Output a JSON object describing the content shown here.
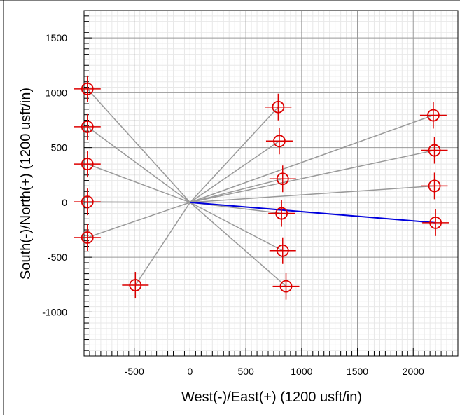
{
  "chart_data": {
    "type": "scatter",
    "title": "",
    "xlabel": "West(-)/East(+) (1200 usft/in)",
    "ylabel": "South(-)/North(+) (1200 usft/in)",
    "xlim": [
      -950,
      2400
    ],
    "ylim": [
      -1400,
      1750
    ],
    "xticks": [
      -500,
      0,
      500,
      1000,
      1500,
      2000
    ],
    "yticks": [
      -1000,
      -500,
      0,
      500,
      1000,
      1500
    ],
    "grid": true,
    "origin": [
      0,
      0
    ],
    "targets": [
      {
        "x": -920,
        "y": 1035
      },
      {
        "x": -920,
        "y": 690
      },
      {
        "x": -920,
        "y": 350
      },
      {
        "x": -920,
        "y": 5
      },
      {
        "x": -920,
        "y": -320
      },
      {
        "x": -490,
        "y": -755
      },
      {
        "x": 790,
        "y": 870
      },
      {
        "x": 800,
        "y": 560
      },
      {
        "x": 830,
        "y": 215
      },
      {
        "x": 820,
        "y": -100
      },
      {
        "x": 830,
        "y": -440
      },
      {
        "x": 860,
        "y": -765
      },
      {
        "x": 2180,
        "y": 795
      },
      {
        "x": 2190,
        "y": 475
      },
      {
        "x": 2190,
        "y": 150
      },
      {
        "x": 2200,
        "y": -185
      }
    ],
    "highlighted_index": 15,
    "colors": {
      "line": "#999999",
      "highlight_line": "#0000dd",
      "marker": "#dd0000",
      "major_grid": "#999999",
      "minor_grid": "#e8e8e8"
    }
  }
}
